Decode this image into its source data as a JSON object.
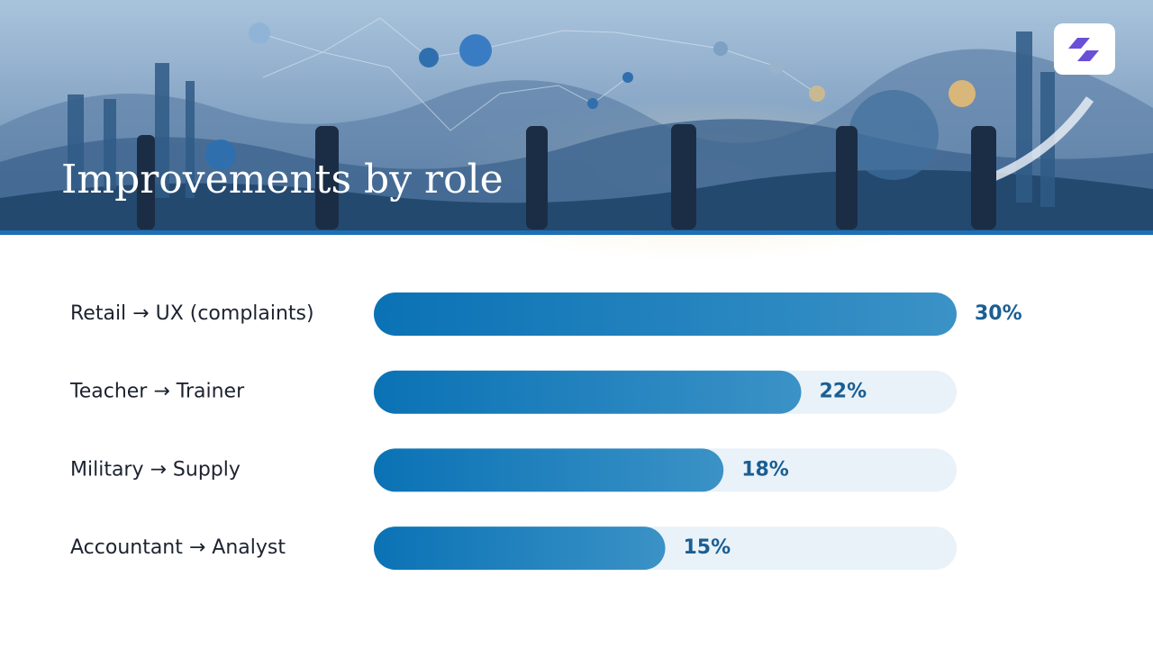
{
  "chart_data": {
    "type": "bar",
    "orientation": "horizontal",
    "title": "Improvements by role",
    "categories": [
      "Retail → UX (complaints)",
      "Teacher → Trainer",
      "Military → Supply",
      "Accountant → Analyst"
    ],
    "values": [
      30,
      22,
      18,
      15
    ],
    "value_labels": [
      "30%",
      "22%",
      "18%",
      "15%"
    ],
    "xlim": [
      0,
      30
    ],
    "color": "#0a72b5"
  }
}
